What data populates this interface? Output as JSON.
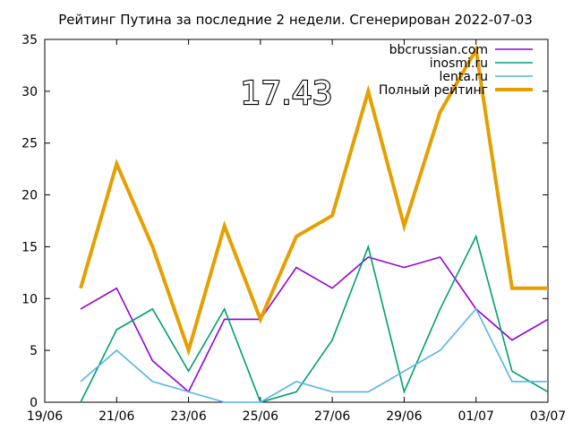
{
  "chart_data": {
    "type": "line",
    "title": "Рейтинг Путина за последние 2 недели. Сгенерирован 2022-07-03",
    "xlabel": "",
    "ylabel": "",
    "x_range": [
      "2022-06-19",
      "2022-07-03"
    ],
    "ylim": [
      0,
      35
    ],
    "x_tick_labels": [
      "19/06",
      "21/06",
      "23/06",
      "25/06",
      "27/06",
      "29/06",
      "01/07",
      "03/07"
    ],
    "y_ticks": [
      0,
      5,
      10,
      15,
      20,
      25,
      30,
      35
    ],
    "x": [
      "2022-06-20",
      "2022-06-21",
      "2022-06-22",
      "2022-06-23",
      "2022-06-24",
      "2022-06-25",
      "2022-06-26",
      "2022-06-27",
      "2022-06-28",
      "2022-06-29",
      "2022-06-30",
      "2022-07-01",
      "2022-07-02",
      "2022-07-03"
    ],
    "series": [
      {
        "name": "bbcrussian.com",
        "color": "#9400d3",
        "values": [
          9,
          11,
          4,
          1,
          8,
          8,
          13,
          11,
          14,
          13,
          14,
          9,
          6,
          8
        ]
      },
      {
        "name": "inosmi.ru",
        "color": "#009e73",
        "values": [
          0,
          7,
          9,
          3,
          9,
          0,
          1,
          6,
          15,
          1,
          9,
          16,
          3,
          1
        ]
      },
      {
        "name": "lenta.ru",
        "color": "#56b4e9",
        "values": [
          2,
          5,
          2,
          1,
          0,
          0,
          2,
          1,
          1,
          3,
          5,
          9,
          2,
          2
        ]
      },
      {
        "name": "Полный рейтинг",
        "color": "#e69f00",
        "values": [
          11,
          23,
          15,
          5,
          17,
          8,
          16,
          18,
          30,
          17,
          28,
          34,
          11,
          11
        ]
      }
    ],
    "legend_position": "top-right",
    "grid": false,
    "overlay_value": "17.43"
  }
}
